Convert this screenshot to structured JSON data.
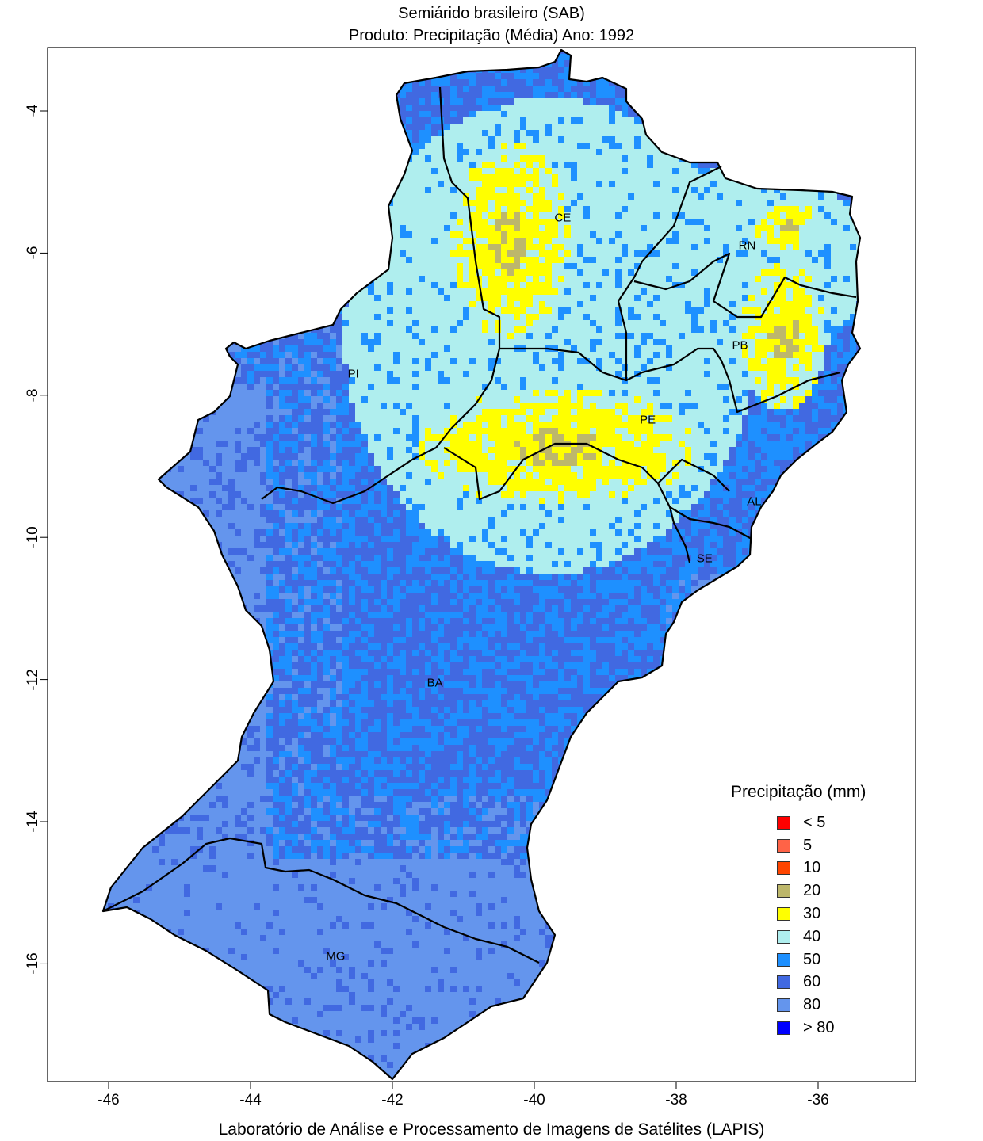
{
  "title_line1": "Semiárido brasileiro (SAB)",
  "title_line2": "Produto: Precipitação (Média)     Ano:  1992",
  "footer": "Laboratório de Análise e Processamento de Imagens de Satélites (LAPIS)",
  "axes": {
    "x_ticks": [
      "-46",
      "-44",
      "-42",
      "-40",
      "-38",
      "-36"
    ],
    "y_ticks": [
      "-4",
      "-6",
      "-8",
      "-10",
      "-12",
      "-14",
      "-16"
    ],
    "xlim": [
      -47.0,
      -34.8
    ],
    "ylim": [
      -17.6,
      -3.1
    ]
  },
  "states": [
    {
      "label": "CE",
      "lon": -39.6,
      "lat": -5.5
    },
    {
      "label": "RN",
      "lon": -37.0,
      "lat": -5.9
    },
    {
      "label": "PB",
      "lon": -37.1,
      "lat": -7.3
    },
    {
      "label": "PI",
      "lon": -42.55,
      "lat": -7.7
    },
    {
      "label": "PE",
      "lon": -38.4,
      "lat": -8.35
    },
    {
      "label": "AL",
      "lon": -36.9,
      "lat": -9.5
    },
    {
      "label": "SE",
      "lon": -37.6,
      "lat": -10.3
    },
    {
      "label": "BA",
      "lon": -41.4,
      "lat": -12.05
    },
    {
      "label": "MG",
      "lon": -42.8,
      "lat": -15.9
    }
  ],
  "legend": {
    "title": "Precipitação (mm)",
    "items": [
      {
        "label": "< 5",
        "color": "#ff0000"
      },
      {
        "label": "5",
        "color": "#ff6347"
      },
      {
        "label": "10",
        "color": "#ff4500"
      },
      {
        "label": "20",
        "color": "#bdb76b"
      },
      {
        "label": "30",
        "color": "#ffff00"
      },
      {
        "label": "40",
        "color": "#afeeee"
      },
      {
        "label": "50",
        "color": "#1e90ff"
      },
      {
        "label": "60",
        "color": "#4169e1"
      },
      {
        "label": "80",
        "color": "#6495ed"
      },
      {
        "label": "> 80",
        "color": "#0000ff"
      }
    ]
  }
}
